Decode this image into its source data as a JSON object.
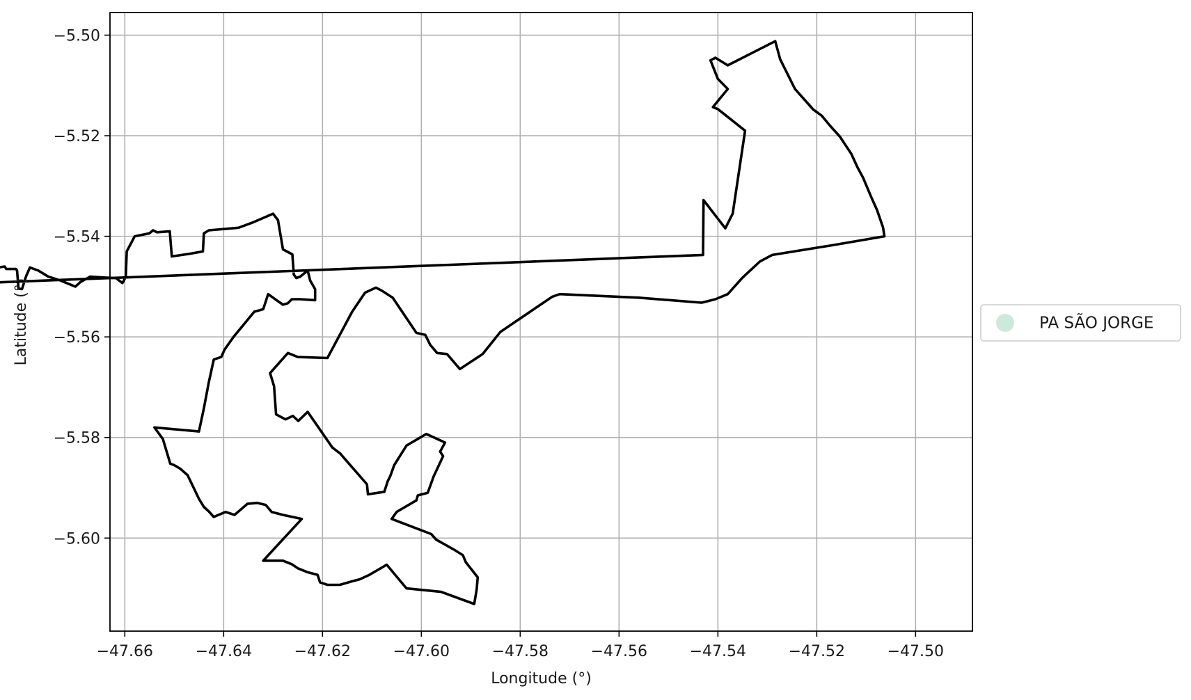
{
  "chart_data": {
    "type": "map",
    "xlabel": "Longitude (°)",
    "ylabel": "Latitude (°)",
    "xlim": [
      -47.663,
      -47.4885
    ],
    "ylim": [
      -5.6185,
      -5.4955
    ],
    "grid": true,
    "xticks": [
      {
        "value": -47.66,
        "label": "−47.66"
      },
      {
        "value": -47.64,
        "label": "−47.64"
      },
      {
        "value": -47.62,
        "label": "−47.62"
      },
      {
        "value": -47.6,
        "label": "−47.60"
      },
      {
        "value": -47.58,
        "label": "−47.58"
      },
      {
        "value": -47.56,
        "label": "−47.56"
      },
      {
        "value": -47.54,
        "label": "−47.54"
      },
      {
        "value": -47.52,
        "label": "−47.52"
      },
      {
        "value": -47.5,
        "label": "−47.50"
      }
    ],
    "yticks": [
      {
        "value": -5.5,
        "label": "−5.50"
      },
      {
        "value": -5.52,
        "label": "−5.52"
      },
      {
        "value": -5.54,
        "label": "−5.54"
      },
      {
        "value": -5.56,
        "label": "−5.56"
      },
      {
        "value": -5.58,
        "label": "−5.58"
      },
      {
        "value": -5.6,
        "label": "−5.60"
      }
    ],
    "legend": {
      "placement": "outside-right",
      "entries": [
        {
          "label": "PA SÃO JORGE",
          "color": "#cde9dc"
        }
      ]
    },
    "series": [
      {
        "name": "PA SÃO JORGE",
        "edge_color": "#000000",
        "coordinates": [
          [
            -47.5284,
            -5.5012
          ],
          [
            -47.5274,
            -5.5048
          ],
          [
            -47.5244,
            -5.5107
          ],
          [
            -47.5207,
            -5.5148
          ],
          [
            -47.519,
            -5.516
          ],
          [
            -47.5174,
            -5.5179
          ],
          [
            -47.5153,
            -5.5202
          ],
          [
            -47.513,
            -5.5236
          ],
          [
            -47.5118,
            -5.5262
          ],
          [
            -47.5106,
            -5.5284
          ],
          [
            -47.5091,
            -5.5319
          ],
          [
            -47.5078,
            -5.5348
          ],
          [
            -47.5066,
            -5.5382
          ],
          [
            -47.5063,
            -5.54
          ],
          [
            -47.517,
            -5.5418
          ],
          [
            -47.529,
            -5.5437
          ],
          [
            -47.5315,
            -5.545
          ],
          [
            -47.535,
            -5.5482
          ],
          [
            -47.538,
            -5.5515
          ],
          [
            -47.5405,
            -5.5525
          ],
          [
            -47.5433,
            -5.5532
          ],
          [
            -47.556,
            -5.5522
          ],
          [
            -47.572,
            -5.5515
          ],
          [
            -47.5735,
            -5.552
          ],
          [
            -47.5765,
            -5.554
          ],
          [
            -47.581,
            -5.557
          ],
          [
            -47.584,
            -5.559
          ],
          [
            -47.5876,
            -5.5634
          ],
          [
            -47.5882,
            -5.5638
          ],
          [
            -47.5922,
            -5.5664
          ],
          [
            -47.5948,
            -5.5634
          ],
          [
            -47.5968,
            -5.5632
          ],
          [
            -47.5982,
            -5.5616
          ],
          [
            -47.5992,
            -5.5596
          ],
          [
            -47.601,
            -5.5592
          ],
          [
            -47.6058,
            -5.5522
          ],
          [
            -47.608,
            -5.5508
          ],
          [
            -47.6092,
            -5.5502
          ],
          [
            -47.6114,
            -5.5512
          ],
          [
            -47.614,
            -5.555
          ],
          [
            -47.619,
            -5.5642
          ],
          [
            -47.625,
            -5.564
          ],
          [
            -47.627,
            -5.5632
          ],
          [
            -47.6306,
            -5.5672
          ],
          [
            -47.6298,
            -5.5698
          ],
          [
            -47.6294,
            -5.5754
          ],
          [
            -47.6275,
            -5.5764
          ],
          [
            -47.626,
            -5.5757
          ],
          [
            -47.6249,
            -5.5767
          ],
          [
            -47.623,
            -5.5749
          ],
          [
            -47.618,
            -5.582
          ],
          [
            -47.6164,
            -5.5832
          ],
          [
            -47.615,
            -5.5848
          ],
          [
            -47.611,
            -5.5893
          ],
          [
            -47.6108,
            -5.5913
          ],
          [
            -47.6075,
            -5.5908
          ],
          [
            -47.6068,
            -5.5887
          ],
          [
            -47.6063,
            -5.5877
          ],
          [
            -47.6055,
            -5.5855
          ],
          [
            -47.603,
            -5.5816
          ],
          [
            -47.599,
            -5.5793
          ],
          [
            -47.5952,
            -5.581
          ],
          [
            -47.5962,
            -5.5828
          ],
          [
            -47.5956,
            -5.5837
          ],
          [
            -47.5965,
            -5.5856
          ],
          [
            -47.5975,
            -5.5877
          ],
          [
            -47.5987,
            -5.591
          ],
          [
            -47.6007,
            -5.5915
          ],
          [
            -47.601,
            -5.5925
          ],
          [
            -47.605,
            -5.5948
          ],
          [
            -47.606,
            -5.5962
          ],
          [
            -47.598,
            -5.5992
          ],
          [
            -47.597,
            -5.6003
          ],
          [
            -47.5934,
            -5.6023
          ],
          [
            -47.5916,
            -5.6034
          ],
          [
            -47.591,
            -5.6048
          ],
          [
            -47.5886,
            -5.6078
          ],
          [
            -47.5888,
            -5.6102
          ],
          [
            -47.5893,
            -5.6131
          ],
          [
            -47.596,
            -5.6107
          ],
          [
            -47.603,
            -5.61
          ],
          [
            -47.607,
            -5.6053
          ],
          [
            -47.6105,
            -5.6073
          ],
          [
            -47.6125,
            -5.6082
          ],
          [
            -47.614,
            -5.6086
          ],
          [
            -47.6165,
            -5.6093
          ],
          [
            -47.619,
            -5.6093
          ],
          [
            -47.6205,
            -5.6088
          ],
          [
            -47.621,
            -5.6073
          ],
          [
            -47.623,
            -5.6068
          ],
          [
            -47.625,
            -5.606
          ],
          [
            -47.6262,
            -5.6052
          ],
          [
            -47.628,
            -5.6045
          ],
          [
            -47.632,
            -5.6045
          ],
          [
            -47.6242,
            -5.5962
          ],
          [
            -47.628,
            -5.5954
          ],
          [
            -47.6303,
            -5.5948
          ],
          [
            -47.6315,
            -5.5934
          ],
          [
            -47.6332,
            -5.593
          ],
          [
            -47.6352,
            -5.5932
          ],
          [
            -47.6378,
            -5.5954
          ],
          [
            -47.6396,
            -5.5948
          ],
          [
            -47.642,
            -5.5958
          ],
          [
            -47.643,
            -5.5947
          ],
          [
            -47.644,
            -5.5938
          ],
          [
            -47.645,
            -5.5922
          ],
          [
            -47.6473,
            -5.5875
          ],
          [
            -47.6488,
            -5.5862
          ],
          [
            -47.65,
            -5.5855
          ],
          [
            -47.6508,
            -5.5852
          ],
          [
            -47.6523,
            -5.5803
          ],
          [
            -47.654,
            -5.578
          ],
          [
            -47.645,
            -5.5788
          ],
          [
            -47.644,
            -5.5742
          ],
          [
            -47.643,
            -5.569
          ],
          [
            -47.642,
            -5.5645
          ],
          [
            -47.6405,
            -5.564
          ],
          [
            -47.6398,
            -5.5625
          ],
          [
            -47.638,
            -5.56
          ],
          [
            -47.6365,
            -5.5582
          ],
          [
            -47.6338,
            -5.555
          ],
          [
            -47.632,
            -5.5545
          ],
          [
            -47.6315,
            -5.553
          ],
          [
            -47.631,
            -5.5515
          ],
          [
            -47.6293,
            -5.5527
          ],
          [
            -47.628,
            -5.5536
          ],
          [
            -47.627,
            -5.5533
          ],
          [
            -47.6262,
            -5.5525
          ],
          [
            -47.6245,
            -5.5525
          ],
          [
            -47.6215,
            -5.5527
          ],
          [
            -47.6215,
            -5.5505
          ],
          [
            -47.6225,
            -5.5488
          ],
          [
            -47.623,
            -5.5468
          ],
          [
            -47.6245,
            -5.548
          ],
          [
            -47.6253,
            -5.5483
          ],
          [
            -47.6258,
            -5.5476
          ],
          [
            -47.6261,
            -5.5436
          ],
          [
            -47.628,
            -5.5426
          ],
          [
            -47.629,
            -5.5368
          ],
          [
            -47.63,
            -5.5355
          ],
          [
            -47.634,
            -5.5372
          ],
          [
            -47.637,
            -5.5383
          ],
          [
            -47.643,
            -5.5388
          ],
          [
            -47.644,
            -5.5394
          ],
          [
            -47.6442,
            -5.543
          ],
          [
            -47.647,
            -5.5435
          ],
          [
            -47.6505,
            -5.544
          ],
          [
            -47.6509,
            -5.539
          ],
          [
            -47.6535,
            -5.5392
          ],
          [
            -47.6543,
            -5.5388
          ],
          [
            -47.655,
            -5.5394
          ],
          [
            -47.658,
            -5.54
          ],
          [
            -47.6596,
            -5.543
          ],
          [
            -47.6598,
            -5.548
          ],
          [
            -47.6603,
            -5.549
          ],
          [
            -47.6605,
            -5.5493
          ],
          [
            -47.6618,
            -5.5483
          ],
          [
            -47.664,
            -5.5482
          ],
          [
            -47.667,
            -5.548
          ],
          [
            -47.669,
            -5.5491
          ],
          [
            -47.67,
            -5.55
          ],
          [
            -47.673,
            -5.5488
          ],
          [
            -47.6755,
            -5.548
          ],
          [
            -47.676,
            -5.5477
          ],
          [
            -47.6775,
            -5.5468
          ],
          [
            -47.6792,
            -5.5462
          ],
          [
            -47.68,
            -5.548
          ],
          [
            -47.6808,
            -5.5505
          ],
          [
            -47.6815,
            -5.5504
          ],
          [
            -47.6818,
            -5.5468
          ],
          [
            -47.682,
            -5.5465
          ],
          [
            -47.684,
            -5.5465
          ],
          [
            -47.6843,
            -5.546
          ],
          [
            -47.6855,
            -5.5462
          ],
          [
            -47.6863,
            -5.5455
          ],
          [
            -47.6875,
            -5.544
          ],
          [
            -47.6882,
            -5.5433
          ],
          [
            -47.689,
            -5.542
          ],
          [
            -47.69,
            -5.5412
          ],
          [
            -47.6905,
            -5.5418
          ],
          [
            -47.692,
            -5.5435
          ],
          [
            -47.6938,
            -5.5447
          ],
          [
            -47.6943,
            -5.5453
          ],
          [
            -47.6945,
            -5.5478
          ],
          [
            -47.6946,
            -5.5495
          ],
          [
            -47.543,
            -5.5437
          ],
          [
            -47.5429,
            -5.5328
          ],
          [
            -47.54,
            -5.5365
          ],
          [
            -47.5385,
            -5.5384
          ],
          [
            -47.537,
            -5.5355
          ],
          [
            -47.5345,
            -5.519
          ],
          [
            -47.54,
            -5.5147
          ],
          [
            -47.541,
            -5.5143
          ],
          [
            -47.538,
            -5.5107
          ],
          [
            -47.54,
            -5.5087
          ],
          [
            -47.5415,
            -5.505
          ],
          [
            -47.5405,
            -5.5045
          ],
          [
            -47.538,
            -5.506
          ],
          [
            -47.5284,
            -5.5012
          ]
        ]
      }
    ]
  }
}
